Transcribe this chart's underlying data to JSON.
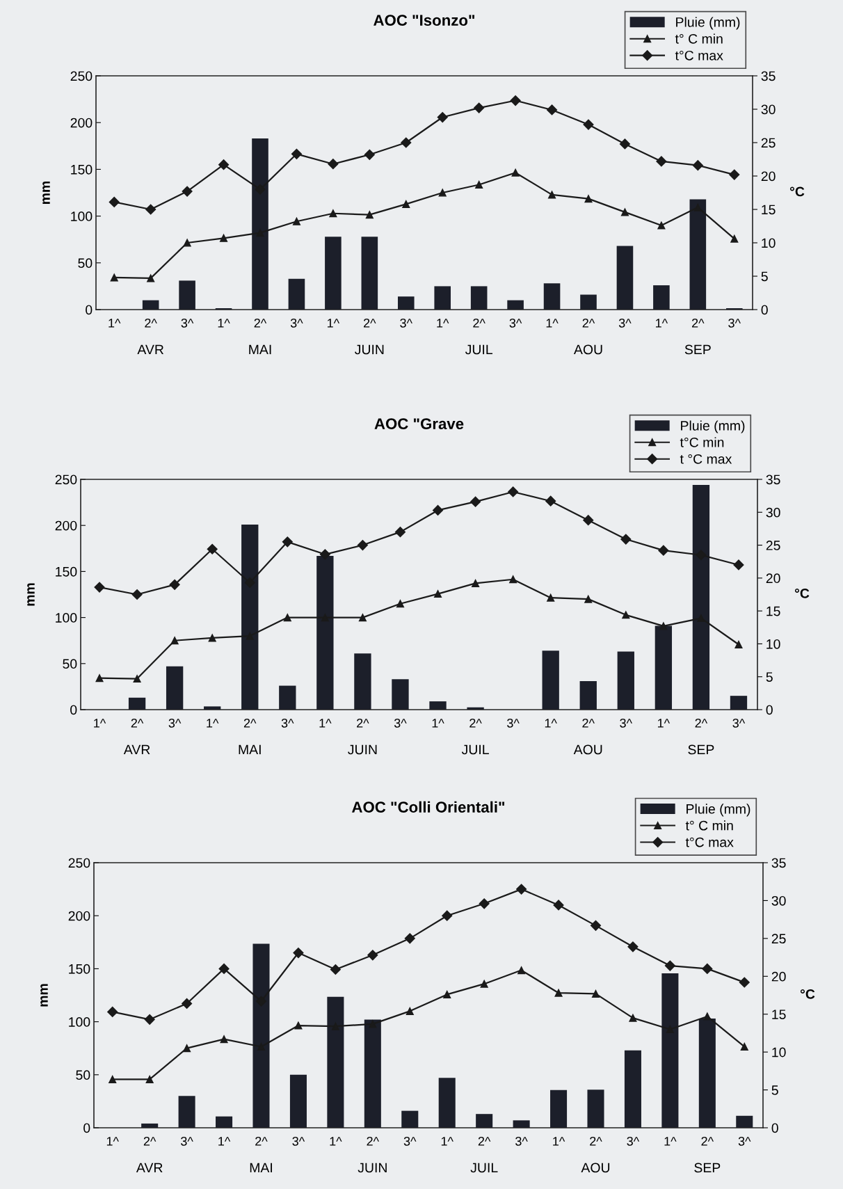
{
  "chart_data": [
    {
      "type": "bar",
      "title": "AOC \"Isonzo\"",
      "ylabel": "mm",
      "y2label": "°C",
      "categories": [
        "1^",
        "2^",
        "3^",
        "1^",
        "2^",
        "3^",
        "1^",
        "2^",
        "3^",
        "1^",
        "2^",
        "3^",
        "1^",
        "2^",
        "3^",
        "1^",
        "2^",
        "3^"
      ],
      "annotations": [
        "AVR",
        "MAI",
        "JUIN",
        "JUIL",
        "AOU",
        "SEP"
      ],
      "series": [
        {
          "name": "Pluie (mm)",
          "color": "#1c1f2a",
          "values": [
            0,
            10,
            31,
            1.5,
            183,
            33,
            78,
            78,
            14,
            25,
            25,
            10,
            28,
            16,
            68,
            26,
            118,
            1.5
          ]
        },
        {
          "name": "t° C min",
          "type": "line",
          "axis": "y2",
          "marker": "triangle",
          "color": "#1a1a1a",
          "values": [
            4.8,
            4.7,
            10.0,
            10.7,
            11.5,
            13.2,
            14.4,
            14.2,
            15.8,
            17.5,
            18.7,
            20.5,
            17.2,
            16.6,
            14.6,
            12.6,
            15.3,
            10.6
          ]
        },
        {
          "name": "t°C max",
          "type": "line",
          "axis": "y2",
          "marker": "diamond",
          "color": "#1a1a1a",
          "values": [
            16.1,
            15.0,
            17.7,
            21.7,
            18.0,
            23.3,
            21.8,
            23.2,
            25.0,
            28.8,
            30.2,
            31.3,
            29.9,
            27.7,
            24.8,
            22.2,
            21.6,
            20.2
          ]
        }
      ],
      "ylim": [
        0,
        250
      ],
      "yticks": [
        0,
        50,
        100,
        150,
        200,
        250
      ],
      "y2lim": [
        0,
        35
      ],
      "y2ticks": [
        0,
        5,
        10,
        15,
        20,
        25,
        30,
        35
      ],
      "legend": "top right",
      "grid": false
    },
    {
      "type": "bar",
      "title": "AOC \"Grave",
      "ylabel": "mm",
      "y2label": "°C",
      "categories": [
        "1^",
        "2^",
        "3^",
        "1^",
        "2^",
        "3^",
        "1^",
        "2^",
        "3^",
        "1^",
        "2^",
        "3^",
        "1^",
        "2^",
        "3^",
        "1^",
        "2^",
        "3^"
      ],
      "annotations": [
        "AVR",
        "MAI",
        "JUIN",
        "JUIL",
        "AOU",
        "SEP"
      ],
      "series": [
        {
          "name": "Pluie (mm)",
          "color": "#1c1f2a",
          "values": [
            0,
            13,
            47,
            3.5,
            201,
            26,
            167,
            61,
            33,
            9,
            2.5,
            0,
            64,
            31,
            63,
            91,
            244,
            15
          ]
        },
        {
          "name": "t°C min",
          "type": "line",
          "axis": "y2",
          "marker": "triangle",
          "color": "#1a1a1a",
          "values": [
            4.8,
            4.7,
            10.5,
            10.9,
            11.2,
            14.0,
            14.0,
            14.0,
            16.1,
            17.6,
            19.2,
            19.8,
            17.0,
            16.8,
            14.4,
            12.7,
            13.9,
            9.9
          ]
        },
        {
          "name": "t °C max",
          "type": "line",
          "axis": "y2",
          "marker": "diamond",
          "color": "#1a1a1a",
          "values": [
            18.6,
            17.5,
            19.0,
            24.4,
            19.3,
            25.5,
            23.6,
            25.0,
            27.0,
            30.3,
            31.6,
            33.1,
            31.7,
            28.8,
            25.9,
            24.2,
            23.5,
            22.0
          ]
        }
      ],
      "ylim": [
        0,
        250
      ],
      "yticks": [
        0,
        50,
        100,
        150,
        200,
        250
      ],
      "y2lim": [
        0,
        35
      ],
      "y2ticks": [
        0,
        5,
        10,
        15,
        20,
        25,
        30,
        35
      ],
      "legend": "top right",
      "grid": false
    },
    {
      "type": "bar",
      "title": "AOC \"Colli Orientali\"",
      "ylabel": "mm",
      "y2label": "°C",
      "categories": [
        "1^",
        "2^",
        "3^",
        "1^",
        "2^",
        "3^",
        "1^",
        "2^",
        "3^",
        "1^",
        "2^",
        "3^",
        "1^",
        "2^",
        "3^",
        "1^",
        "2^",
        "3^"
      ],
      "annotations": [
        "AVR",
        "MAI",
        "JUIN",
        "JUIL",
        "AOU",
        "SEP"
      ],
      "series": [
        {
          "name": "Pluie (mm)",
          "color": "#1c1f2a",
          "values": [
            0,
            4,
            30,
            10.7,
            173.5,
            50,
            123.5,
            102,
            16,
            47,
            13,
            7,
            35.6,
            36,
            73,
            145.6,
            103,
            11.3
          ]
        },
        {
          "name": "t° C min",
          "type": "line",
          "axis": "y2",
          "marker": "triangle",
          "color": "#1a1a1a",
          "values": [
            6.4,
            6.4,
            10.5,
            11.7,
            10.7,
            13.5,
            13.4,
            13.7,
            15.4,
            17.6,
            19.0,
            20.8,
            17.8,
            17.7,
            14.5,
            13.0,
            14.7,
            10.7
          ]
        },
        {
          "name": "t°C max",
          "type": "line",
          "axis": "y2",
          "marker": "diamond",
          "color": "#1a1a1a",
          "values": [
            15.3,
            14.3,
            16.4,
            21.0,
            16.7,
            23.1,
            20.9,
            22.8,
            25.0,
            28.0,
            29.6,
            31.5,
            29.4,
            26.7,
            23.9,
            21.4,
            21.0,
            19.2
          ]
        }
      ],
      "ylim": [
        0,
        250
      ],
      "yticks": [
        0,
        50,
        100,
        150,
        200,
        250
      ],
      "y2lim": [
        0,
        35
      ],
      "y2ticks": [
        0,
        5,
        10,
        15,
        20,
        25,
        30,
        35
      ],
      "legend": "top right",
      "grid": false
    }
  ]
}
